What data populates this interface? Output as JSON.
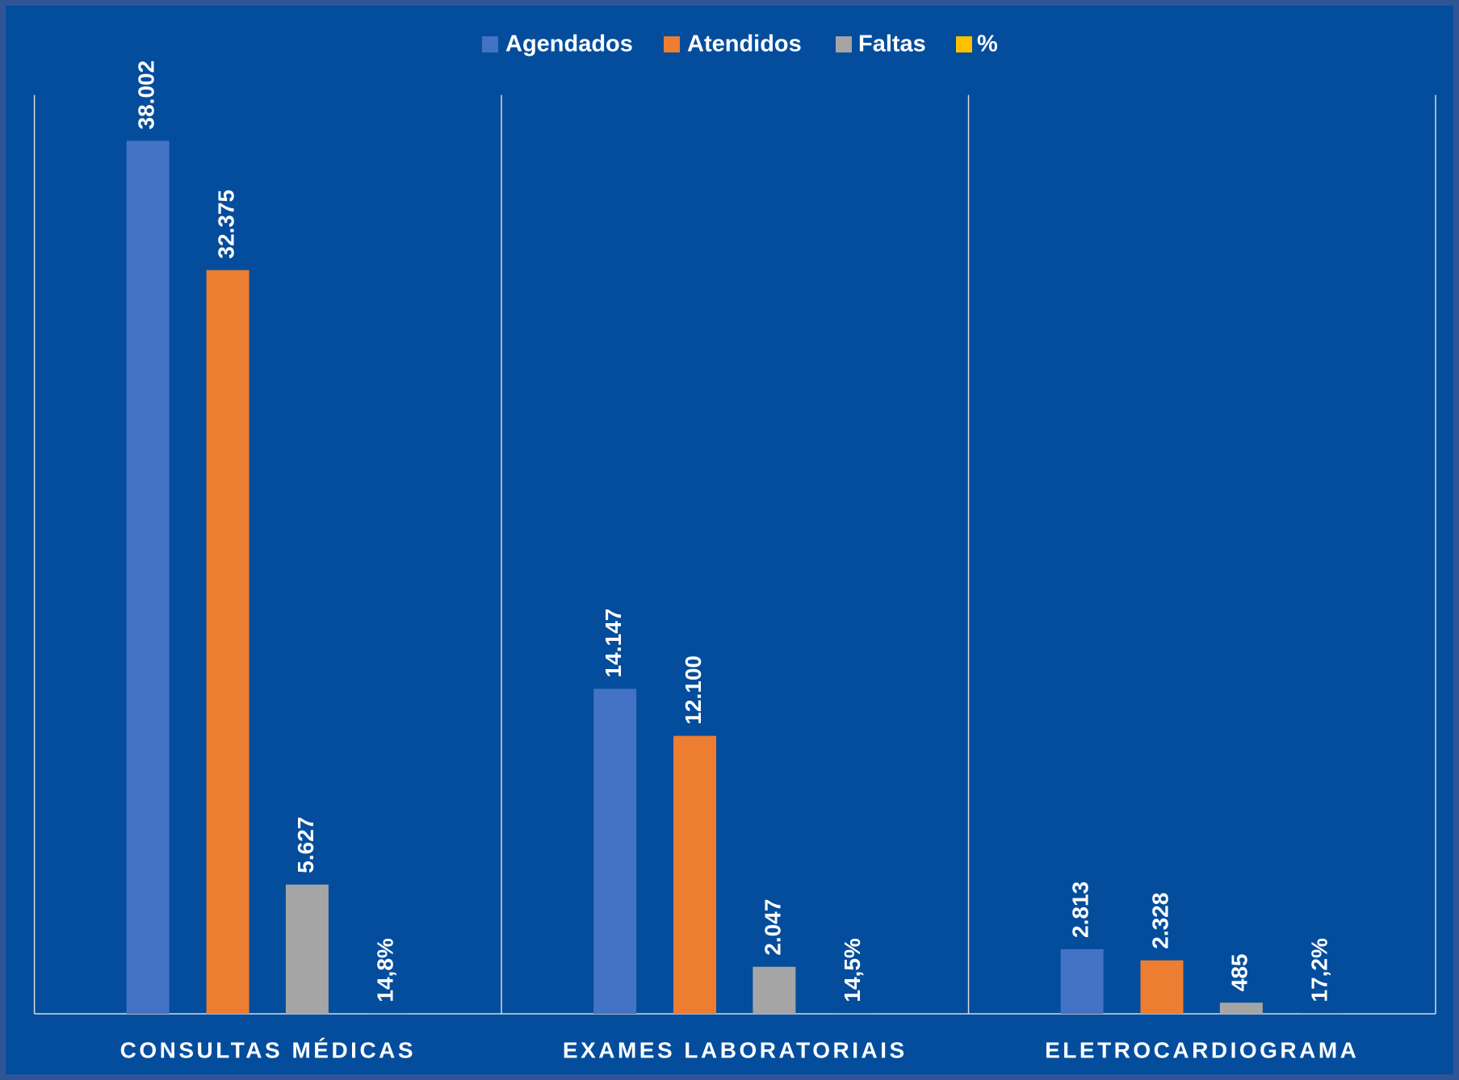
{
  "chart_data": {
    "type": "bar",
    "categories": [
      "CONSULTAS MÉDICAS",
      "EXAMES LABORATORIAIS",
      "ELETROCARDIOGRAMA"
    ],
    "series": [
      {
        "name": "Agendados",
        "color": "#4472c4",
        "values": [
          38002,
          14147,
          2813
        ],
        "value_labels": [
          "38.002",
          "14.147",
          "2.813"
        ]
      },
      {
        "name": "Atendidos",
        "color": "#ed7d31",
        "values": [
          32375,
          12100,
          2328
        ],
        "value_labels": [
          "32.375",
          "12.100",
          "2.328"
        ]
      },
      {
        "name": "Faltas",
        "color": "#a5a5a5",
        "values": [
          5627,
          2047,
          485
        ],
        "value_labels": [
          "5.627",
          "2.047",
          "485"
        ]
      },
      {
        "name": "%",
        "color": "#ffc000",
        "values": [
          14.8,
          14.5,
          17.2
        ],
        "value_labels": [
          "14,8%",
          "14,5%",
          "17,2%"
        ]
      }
    ],
    "ylim": [
      0,
      40000
    ],
    "legend": "top"
  }
}
